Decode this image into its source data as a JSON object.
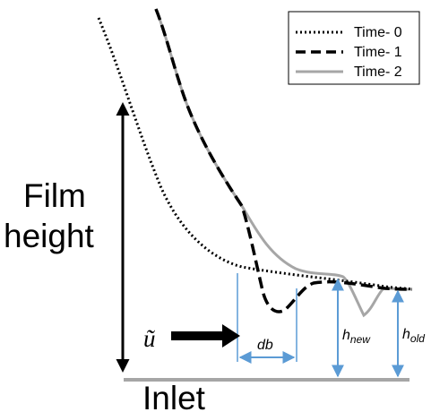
{
  "diagram": {
    "labels": {
      "film": "Film",
      "height": "height",
      "inlet": "Inlet",
      "velocity_symbol": "ũ",
      "db": "db",
      "h_new_base": "h",
      "h_new_sub": "new",
      "h_old_base": "h",
      "h_old_sub": "old"
    },
    "legend": {
      "items": [
        {
          "label": "Time- 0",
          "style": "dotted",
          "color": "#000000"
        },
        {
          "label": "Time- 1",
          "style": "dashed",
          "color": "#000000"
        },
        {
          "label": "Time- 2",
          "style": "solid",
          "color": "#a6a6a6"
        }
      ]
    },
    "colors": {
      "curve_black": "#000000",
      "curve_gray": "#a6a6a6",
      "annotation_blue": "#5b9bd5",
      "inlet_line": "#a6a6a6"
    }
  }
}
